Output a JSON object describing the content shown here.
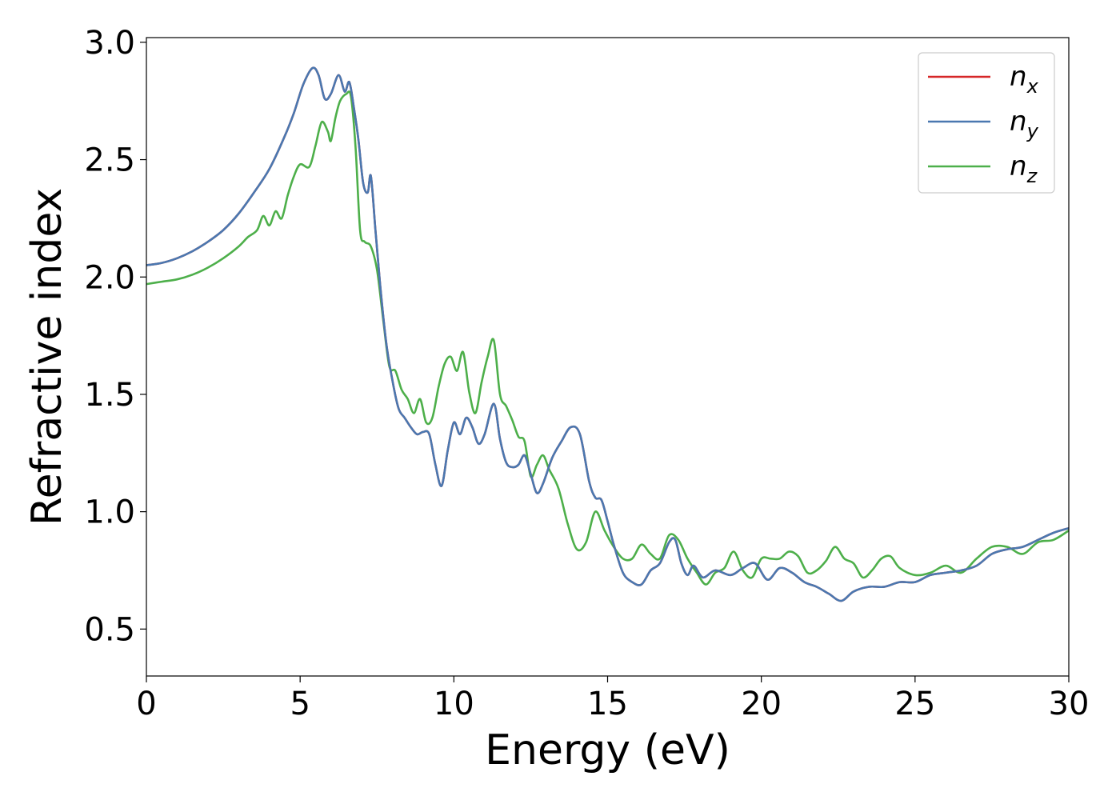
{
  "chart_data": {
    "type": "line",
    "title": "",
    "xlabel": "Energy (eV)",
    "ylabel": "Refractive index",
    "xlim": [
      0,
      30
    ],
    "ylim": [
      0.3,
      3.02
    ],
    "xticks": [
      0,
      5,
      10,
      15,
      20,
      25,
      30
    ],
    "xtick_labels": [
      "0",
      "5",
      "10",
      "15",
      "20",
      "25",
      "30"
    ],
    "yticks": [
      0.5,
      1.0,
      1.5,
      2.0,
      2.5,
      3.0
    ],
    "ytick_labels": [
      "0.5",
      "1.0",
      "1.5",
      "2.0",
      "2.5",
      "3.0"
    ],
    "grid": false,
    "legend_position": "top-right",
    "series": [
      {
        "name": "n_x",
        "legend_base": "n",
        "legend_sub": "x",
        "color": "#d62728",
        "x": [
          0,
          0.5,
          1,
          1.5,
          2,
          2.5,
          3,
          3.5,
          4,
          4.5,
          4.8,
          5.1,
          5.4,
          5.6,
          5.8,
          6.0,
          6.25,
          6.45,
          6.6,
          6.75,
          6.9,
          7.05,
          7.2,
          7.3,
          7.45,
          7.6,
          7.8,
          8.0,
          8.2,
          8.4,
          8.6,
          8.8,
          9.0,
          9.2,
          9.4,
          9.6,
          9.8,
          10.0,
          10.2,
          10.4,
          10.6,
          10.8,
          11.0,
          11.3,
          11.5,
          11.7,
          11.9,
          12.1,
          12.3,
          12.5,
          12.7,
          12.9,
          13.2,
          13.5,
          13.8,
          14.1,
          14.4,
          14.6,
          14.8,
          15.0,
          15.2,
          15.5,
          15.8,
          16.1,
          16.4,
          16.7,
          17.0,
          17.2,
          17.4,
          17.6,
          17.8,
          18.1,
          18.5,
          19.0,
          19.4,
          19.8,
          20.2,
          20.6,
          21.0,
          21.4,
          21.8,
          22.2,
          22.6,
          23.0,
          23.5,
          24.0,
          24.5,
          25.0,
          25.5,
          26.0,
          26.5,
          27.0,
          27.5,
          28.0,
          28.5,
          29.0,
          29.5,
          30.0
        ],
        "y": [
          2.05,
          2.06,
          2.08,
          2.11,
          2.15,
          2.2,
          2.27,
          2.36,
          2.46,
          2.6,
          2.7,
          2.82,
          2.89,
          2.86,
          2.76,
          2.78,
          2.86,
          2.79,
          2.83,
          2.72,
          2.58,
          2.4,
          2.36,
          2.43,
          2.2,
          1.97,
          1.72,
          1.56,
          1.44,
          1.4,
          1.36,
          1.33,
          1.34,
          1.33,
          1.2,
          1.11,
          1.26,
          1.38,
          1.33,
          1.4,
          1.36,
          1.29,
          1.33,
          1.46,
          1.31,
          1.21,
          1.19,
          1.2,
          1.24,
          1.16,
          1.08,
          1.12,
          1.23,
          1.3,
          1.36,
          1.33,
          1.13,
          1.06,
          1.05,
          0.96,
          0.86,
          0.74,
          0.7,
          0.69,
          0.75,
          0.78,
          0.87,
          0.88,
          0.78,
          0.73,
          0.77,
          0.72,
          0.75,
          0.73,
          0.76,
          0.78,
          0.71,
          0.76,
          0.74,
          0.7,
          0.68,
          0.65,
          0.62,
          0.66,
          0.68,
          0.68,
          0.7,
          0.7,
          0.73,
          0.74,
          0.75,
          0.77,
          0.82,
          0.84,
          0.85,
          0.88,
          0.91,
          0.93
        ]
      },
      {
        "name": "n_y",
        "legend_base": "n",
        "legend_sub": "y",
        "color": "#4a78b0",
        "x": [
          0,
          0.5,
          1,
          1.5,
          2,
          2.5,
          3,
          3.5,
          4,
          4.5,
          4.8,
          5.1,
          5.4,
          5.6,
          5.8,
          6.0,
          6.25,
          6.45,
          6.6,
          6.75,
          6.9,
          7.05,
          7.2,
          7.3,
          7.45,
          7.6,
          7.8,
          8.0,
          8.2,
          8.4,
          8.6,
          8.8,
          9.0,
          9.2,
          9.4,
          9.6,
          9.8,
          10.0,
          10.2,
          10.4,
          10.6,
          10.8,
          11.0,
          11.3,
          11.5,
          11.7,
          11.9,
          12.1,
          12.3,
          12.5,
          12.7,
          12.9,
          13.2,
          13.5,
          13.8,
          14.1,
          14.4,
          14.6,
          14.8,
          15.0,
          15.2,
          15.5,
          15.8,
          16.1,
          16.4,
          16.7,
          17.0,
          17.2,
          17.4,
          17.6,
          17.8,
          18.1,
          18.5,
          19.0,
          19.4,
          19.8,
          20.2,
          20.6,
          21.0,
          21.4,
          21.8,
          22.2,
          22.6,
          23.0,
          23.5,
          24.0,
          24.5,
          25.0,
          25.5,
          26.0,
          26.5,
          27.0,
          27.5,
          28.0,
          28.5,
          29.0,
          29.5,
          30.0
        ],
        "y": [
          2.05,
          2.06,
          2.08,
          2.11,
          2.15,
          2.2,
          2.27,
          2.36,
          2.46,
          2.6,
          2.7,
          2.82,
          2.89,
          2.86,
          2.76,
          2.78,
          2.86,
          2.79,
          2.83,
          2.72,
          2.58,
          2.4,
          2.36,
          2.43,
          2.2,
          1.97,
          1.72,
          1.56,
          1.44,
          1.4,
          1.36,
          1.33,
          1.34,
          1.33,
          1.2,
          1.11,
          1.26,
          1.38,
          1.33,
          1.4,
          1.36,
          1.29,
          1.33,
          1.46,
          1.31,
          1.21,
          1.19,
          1.2,
          1.24,
          1.16,
          1.08,
          1.12,
          1.23,
          1.3,
          1.36,
          1.33,
          1.13,
          1.06,
          1.05,
          0.96,
          0.86,
          0.74,
          0.7,
          0.69,
          0.75,
          0.78,
          0.87,
          0.88,
          0.78,
          0.73,
          0.77,
          0.72,
          0.75,
          0.73,
          0.76,
          0.78,
          0.71,
          0.76,
          0.74,
          0.7,
          0.68,
          0.65,
          0.62,
          0.66,
          0.68,
          0.68,
          0.7,
          0.7,
          0.73,
          0.74,
          0.75,
          0.77,
          0.82,
          0.84,
          0.85,
          0.88,
          0.91,
          0.93
        ]
      },
      {
        "name": "n_z",
        "legend_base": "n",
        "legend_sub": "z",
        "color": "#4daf4a",
        "x": [
          0,
          0.5,
          1,
          1.5,
          2,
          2.5,
          3,
          3.3,
          3.6,
          3.8,
          4.0,
          4.2,
          4.4,
          4.6,
          4.8,
          5.0,
          5.3,
          5.5,
          5.7,
          5.9,
          6.0,
          6.15,
          6.3,
          6.5,
          6.65,
          6.8,
          6.95,
          7.1,
          7.3,
          7.5,
          7.7,
          7.9,
          8.1,
          8.3,
          8.5,
          8.7,
          8.9,
          9.1,
          9.3,
          9.5,
          9.7,
          9.9,
          10.1,
          10.3,
          10.5,
          10.7,
          10.9,
          11.1,
          11.3,
          11.5,
          11.7,
          11.9,
          12.1,
          12.3,
          12.5,
          12.7,
          12.9,
          13.1,
          13.4,
          13.7,
          14.0,
          14.3,
          14.6,
          14.9,
          15.2,
          15.5,
          15.8,
          16.1,
          16.4,
          16.7,
          17.0,
          17.3,
          17.6,
          17.9,
          18.2,
          18.5,
          18.8,
          19.1,
          19.4,
          19.7,
          20.0,
          20.3,
          20.6,
          20.9,
          21.2,
          21.5,
          21.8,
          22.1,
          22.4,
          22.7,
          23.0,
          23.3,
          23.6,
          23.9,
          24.2,
          24.5,
          25.0,
          25.5,
          26.0,
          26.5,
          27.0,
          27.5,
          28.0,
          28.5,
          29.0,
          29.5,
          30.0
        ],
        "y": [
          1.97,
          1.98,
          1.99,
          2.01,
          2.04,
          2.08,
          2.13,
          2.17,
          2.2,
          2.26,
          2.22,
          2.28,
          2.25,
          2.35,
          2.43,
          2.48,
          2.47,
          2.56,
          2.66,
          2.62,
          2.58,
          2.68,
          2.75,
          2.78,
          2.77,
          2.56,
          2.2,
          2.15,
          2.13,
          2.03,
          1.82,
          1.62,
          1.6,
          1.52,
          1.48,
          1.42,
          1.48,
          1.38,
          1.4,
          1.53,
          1.63,
          1.66,
          1.6,
          1.68,
          1.51,
          1.42,
          1.55,
          1.66,
          1.73,
          1.5,
          1.45,
          1.39,
          1.32,
          1.3,
          1.15,
          1.2,
          1.24,
          1.18,
          1.1,
          0.95,
          0.84,
          0.87,
          1.0,
          0.92,
          0.85,
          0.8,
          0.8,
          0.86,
          0.82,
          0.8,
          0.9,
          0.88,
          0.8,
          0.74,
          0.69,
          0.74,
          0.76,
          0.83,
          0.75,
          0.72,
          0.8,
          0.8,
          0.8,
          0.83,
          0.81,
          0.74,
          0.75,
          0.79,
          0.85,
          0.8,
          0.78,
          0.72,
          0.75,
          0.8,
          0.81,
          0.76,
          0.73,
          0.74,
          0.77,
          0.74,
          0.8,
          0.85,
          0.85,
          0.82,
          0.87,
          0.88,
          0.92
        ]
      }
    ]
  }
}
